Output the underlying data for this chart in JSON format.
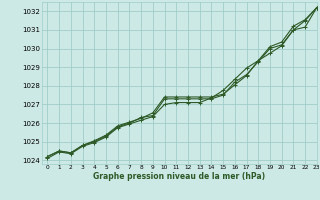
{
  "xlabel": "Graphe pression niveau de la mer (hPa)",
  "xlim": [
    -0.5,
    23
  ],
  "ylim": [
    1023.8,
    1032.5
  ],
  "yticks": [
    1024,
    1025,
    1026,
    1027,
    1028,
    1029,
    1030,
    1031,
    1032
  ],
  "xticks": [
    0,
    1,
    2,
    3,
    4,
    5,
    6,
    7,
    8,
    9,
    10,
    11,
    12,
    13,
    14,
    15,
    16,
    17,
    18,
    19,
    20,
    21,
    22,
    23
  ],
  "background_color": "#cde9e6",
  "grid_color": "#a0cdc9",
  "line_color": "#2d5a27",
  "series1_x": [
    0,
    1,
    2,
    3,
    4,
    5,
    6,
    7,
    8,
    9,
    10,
    11,
    12,
    13,
    14,
    15,
    16,
    17,
    18,
    19,
    20,
    21,
    22,
    23
  ],
  "series1_y": [
    1024.2,
    1024.5,
    1024.4,
    1024.8,
    1025.0,
    1025.3,
    1025.8,
    1026.0,
    1026.3,
    1026.4,
    1027.3,
    1027.3,
    1027.3,
    1027.3,
    1027.3,
    1027.5,
    1028.2,
    1028.6,
    1029.3,
    1030.0,
    1030.2,
    1031.0,
    1031.5,
    1032.2
  ],
  "series2_x": [
    0,
    1,
    2,
    3,
    4,
    5,
    6,
    7,
    8,
    9,
    10,
    11,
    12,
    13,
    14,
    15,
    16,
    17,
    18,
    19,
    20,
    21,
    22,
    23
  ],
  "series2_y": [
    1024.2,
    1024.5,
    1024.4,
    1024.8,
    1025.05,
    1025.35,
    1025.85,
    1026.05,
    1026.25,
    1026.55,
    1027.4,
    1027.4,
    1027.4,
    1027.4,
    1027.4,
    1027.55,
    1028.05,
    1028.55,
    1029.35,
    1030.1,
    1030.35,
    1031.2,
    1031.55,
    1032.2
  ],
  "series3_x": [
    0,
    1,
    2,
    3,
    4,
    5,
    6,
    7,
    8,
    9,
    10,
    11,
    12,
    13,
    14,
    15,
    16,
    17,
    18,
    19,
    20,
    21,
    22,
    23
  ],
  "series3_y": [
    1024.1,
    1024.45,
    1024.35,
    1024.75,
    1024.95,
    1025.25,
    1025.75,
    1025.95,
    1026.15,
    1026.35,
    1027.0,
    1027.1,
    1027.1,
    1027.1,
    1027.35,
    1027.75,
    1028.35,
    1028.95,
    1029.35,
    1029.75,
    1030.15,
    1031.0,
    1031.15,
    1032.2
  ]
}
